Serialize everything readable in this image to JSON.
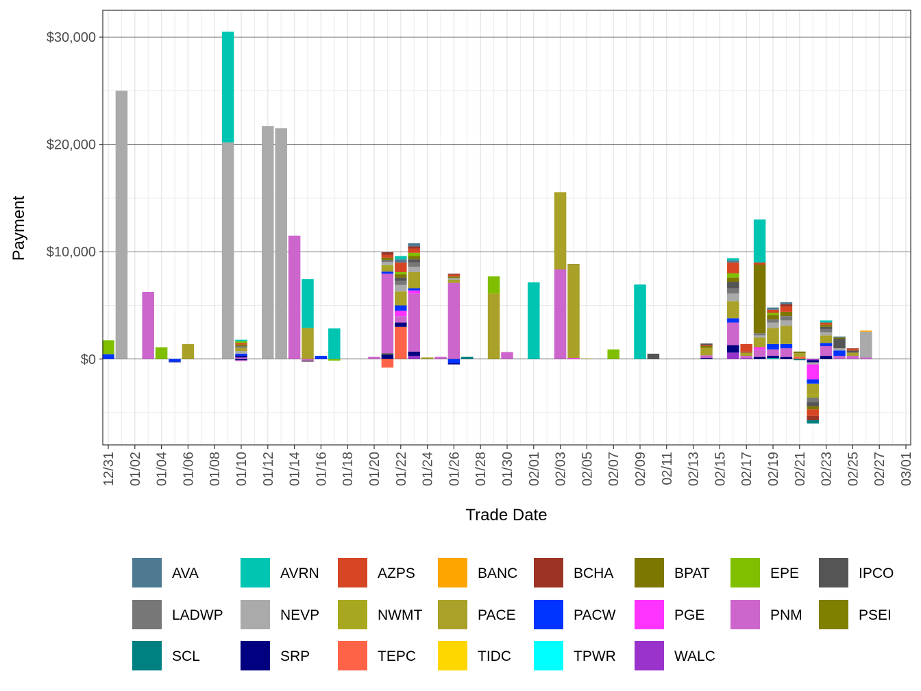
{
  "chart_data": {
    "type": "bar",
    "stacked": true,
    "xlabel": "Trade Date",
    "ylabel": "Payment",
    "ylim": [
      -8000,
      32500
    ],
    "y_ticks": [
      0,
      10000,
      20000,
      30000
    ],
    "y_tick_labels": [
      "$0",
      "$10,000",
      "$20,000",
      "$30,000"
    ],
    "x_tick_labels": [
      "12/31",
      "01/02",
      "01/04",
      "01/06",
      "01/08",
      "01/10",
      "01/12",
      "01/14",
      "01/16",
      "01/18",
      "01/20",
      "01/22",
      "01/24",
      "01/26",
      "01/28",
      "01/30",
      "02/01",
      "02/03",
      "02/05",
      "02/07",
      "02/09",
      "02/11",
      "02/13",
      "02/15",
      "02/17",
      "02/19",
      "02/21",
      "02/23",
      "02/25",
      "02/27",
      "03/01"
    ],
    "grid": true,
    "legend_position": "bottom",
    "series": [
      {
        "name": "AVA",
        "color": "#4e7a91"
      },
      {
        "name": "AVRN",
        "color": "#00c5b2"
      },
      {
        "name": "AZPS",
        "color": "#d64524"
      },
      {
        "name": "BANC",
        "color": "#ffa500"
      },
      {
        "name": "BCHA",
        "color": "#9c3426"
      },
      {
        "name": "BPAT",
        "color": "#7d7700"
      },
      {
        "name": "EPE",
        "color": "#7fbf00"
      },
      {
        "name": "IPCO",
        "color": "#555555"
      },
      {
        "name": "LADWP",
        "color": "#777777"
      },
      {
        "name": "NEVP",
        "color": "#aaaaaa"
      },
      {
        "name": "NWMT",
        "color": "#a8a820"
      },
      {
        "name": "PACE",
        "color": "#a9a128"
      },
      {
        "name": "PACW",
        "color": "#0033ff"
      },
      {
        "name": "PGE",
        "color": "#ff33ff"
      },
      {
        "name": "PNM",
        "color": "#cc66cc"
      },
      {
        "name": "PSEI",
        "color": "#7f7f00"
      },
      {
        "name": "SCL",
        "color": "#008080"
      },
      {
        "name": "SRP",
        "color": "#000080"
      },
      {
        "name": "TEPC",
        "color": "#ff6347"
      },
      {
        "name": "TIDC",
        "color": "#ffd700"
      },
      {
        "name": "TPWR",
        "color": "#00ffff"
      },
      {
        "name": "WALC",
        "color": "#9933cc"
      }
    ],
    "bars": [
      {
        "day": 0,
        "date": "12/31",
        "segments": [
          {
            "s": "PACW",
            "v": 450
          },
          {
            "s": "EPE",
            "v": 1300
          }
        ]
      },
      {
        "day": 1,
        "date": "01/01",
        "segments": [
          {
            "s": "NEVP",
            "v": 25000
          }
        ]
      },
      {
        "day": 3,
        "date": "01/03",
        "segments": [
          {
            "s": "PNM",
            "v": 6250
          }
        ]
      },
      {
        "day": 4,
        "date": "01/04",
        "segments": [
          {
            "s": "EPE",
            "v": 1100
          }
        ]
      },
      {
        "day": 5,
        "date": "01/05",
        "segments": [
          {
            "s": "PACW",
            "v": -250
          },
          {
            "s": "SRP",
            "v": -50
          }
        ]
      },
      {
        "day": 6,
        "date": "01/06",
        "segments": [
          {
            "s": "PACE",
            "v": 1400
          }
        ]
      },
      {
        "day": 9,
        "date": "01/09",
        "segments": [
          {
            "s": "NEVP",
            "v": 20200
          },
          {
            "s": "AVRN",
            "v": 10300
          }
        ]
      },
      {
        "day": 10,
        "date": "01/10",
        "segments": [
          {
            "s": "PNM",
            "v": 150
          },
          {
            "s": "SRP",
            "v": 150
          },
          {
            "s": "PACW",
            "v": 200
          },
          {
            "s": "NEVP",
            "v": 250
          },
          {
            "s": "PACE",
            "v": 300
          },
          {
            "s": "LADWP",
            "v": 150
          },
          {
            "s": "BPAT",
            "v": 150
          },
          {
            "s": "AZPS",
            "v": 150
          },
          {
            "s": "EPE",
            "v": 150
          },
          {
            "s": "AVRN",
            "v": 150
          },
          {
            "s": "SRP",
            "v": -100
          },
          {
            "s": "PNM",
            "v": -100
          }
        ]
      },
      {
        "day": 12,
        "date": "01/12",
        "segments": [
          {
            "s": "NEVP",
            "v": 21700
          }
        ]
      },
      {
        "day": 13,
        "date": "01/13",
        "segments": [
          {
            "s": "NEVP",
            "v": 21500
          }
        ]
      },
      {
        "day": 14,
        "date": "01/14",
        "segments": [
          {
            "s": "PNM",
            "v": 11500
          }
        ]
      },
      {
        "day": 15,
        "date": "01/15",
        "segments": [
          {
            "s": "PACE",
            "v": 2900
          },
          {
            "s": "AVRN",
            "v": 4550
          },
          {
            "s": "PNM",
            "v": -150
          },
          {
            "s": "IPCO",
            "v": -100
          }
        ]
      },
      {
        "day": 16,
        "date": "01/16",
        "segments": [
          {
            "s": "PACW",
            "v": 300
          }
        ]
      },
      {
        "day": 17,
        "date": "01/17",
        "segments": [
          {
            "s": "AVRN",
            "v": 2850
          },
          {
            "s": "EPE",
            "v": -150
          }
        ]
      },
      {
        "day": 20,
        "date": "01/20",
        "segments": [
          {
            "s": "PNM",
            "v": 200
          }
        ]
      },
      {
        "day": 21,
        "date": "01/21",
        "segments": [
          {
            "s": "SRP",
            "v": 400
          },
          {
            "s": "IPCO",
            "v": 150
          },
          {
            "s": "PNM",
            "v": 7400
          },
          {
            "s": "PACW",
            "v": 200
          },
          {
            "s": "PACE",
            "v": 400
          },
          {
            "s": "NWMT",
            "v": 200
          },
          {
            "s": "NEVP",
            "v": 300
          },
          {
            "s": "LADWP",
            "v": 200
          },
          {
            "s": "BPAT",
            "v": 200
          },
          {
            "s": "AZPS",
            "v": 250
          },
          {
            "s": "BCHA",
            "v": 250
          },
          {
            "s": "TEPC",
            "v": -800
          }
        ]
      },
      {
        "day": 22,
        "date": "01/22",
        "segments": [
          {
            "s": "TEPC",
            "v": 3000
          },
          {
            "s": "SRP",
            "v": 400
          },
          {
            "s": "PNM",
            "v": 600
          },
          {
            "s": "PGE",
            "v": 500
          },
          {
            "s": "PACW",
            "v": 500
          },
          {
            "s": "PACE",
            "v": 1300
          },
          {
            "s": "NEVP",
            "v": 600
          },
          {
            "s": "LADWP",
            "v": 400
          },
          {
            "s": "IPCO",
            "v": 300
          },
          {
            "s": "BPAT",
            "v": 300
          },
          {
            "s": "EPE",
            "v": 200
          },
          {
            "s": "AZPS",
            "v": 900
          },
          {
            "s": "AVA",
            "v": 300
          },
          {
            "s": "AVRN",
            "v": 300
          }
        ]
      },
      {
        "day": 23,
        "date": "01/23",
        "segments": [
          {
            "s": "WALC",
            "v": 300
          },
          {
            "s": "SRP",
            "v": 400
          },
          {
            "s": "PNM",
            "v": 5400
          },
          {
            "s": "PGE",
            "v": 300
          },
          {
            "s": "PACW",
            "v": 200
          },
          {
            "s": "PACE",
            "v": 1500
          },
          {
            "s": "NEVP",
            "v": 500
          },
          {
            "s": "LADWP",
            "v": 400
          },
          {
            "s": "IPCO",
            "v": 300
          },
          {
            "s": "BPAT",
            "v": 300
          },
          {
            "s": "EPE",
            "v": 300
          },
          {
            "s": "AZPS",
            "v": 400
          },
          {
            "s": "BCHA",
            "v": 200
          },
          {
            "s": "AVA",
            "v": 300
          }
        ]
      },
      {
        "day": 24,
        "date": "01/24",
        "segments": [
          {
            "s": "PACE",
            "v": 150
          }
        ]
      },
      {
        "day": 25,
        "date": "01/25",
        "segments": [
          {
            "s": "PNM",
            "v": 200
          }
        ]
      },
      {
        "day": 26,
        "date": "01/26",
        "segments": [
          {
            "s": "PNM",
            "v": 7100
          },
          {
            "s": "PACE",
            "v": 300
          },
          {
            "s": "NEVP",
            "v": 150
          },
          {
            "s": "BPAT",
            "v": 150
          },
          {
            "s": "AZPS",
            "v": 150
          },
          {
            "s": "BCHA",
            "v": 100
          },
          {
            "s": "PACW",
            "v": -400
          },
          {
            "s": "SRP",
            "v": -100
          }
        ]
      },
      {
        "day": 27,
        "date": "01/27",
        "segments": [
          {
            "s": "SCL",
            "v": 200
          }
        ]
      },
      {
        "day": 29,
        "date": "01/29",
        "segments": [
          {
            "s": "PACE",
            "v": 6100
          },
          {
            "s": "EPE",
            "v": 1600
          }
        ]
      },
      {
        "day": 30,
        "date": "01/30",
        "segments": [
          {
            "s": "PNM",
            "v": 650
          }
        ]
      },
      {
        "day": 32,
        "date": "02/01",
        "segments": [
          {
            "s": "AVRN",
            "v": 7150
          }
        ]
      },
      {
        "day": 34,
        "date": "02/03",
        "segments": [
          {
            "s": "PNM",
            "v": 8350
          },
          {
            "s": "PACE",
            "v": 7200
          }
        ]
      },
      {
        "day": 35,
        "date": "02/04",
        "segments": [
          {
            "s": "PGE",
            "v": 100
          },
          {
            "s": "PACE",
            "v": 8700
          },
          {
            "s": "BPAT",
            "v": 50
          }
        ]
      },
      {
        "day": 36,
        "date": "02/05",
        "segments": [
          {
            "s": "PACE",
            "v": 50
          }
        ]
      },
      {
        "day": 38,
        "date": "02/07",
        "segments": [
          {
            "s": "EPE",
            "v": 900
          }
        ]
      },
      {
        "day": 40,
        "date": "02/09",
        "segments": [
          {
            "s": "AVRN",
            "v": 6950
          }
        ]
      },
      {
        "day": 41,
        "date": "02/10",
        "segments": [
          {
            "s": "IPCO",
            "v": 500
          }
        ]
      },
      {
        "day": 45,
        "date": "02/14",
        "segments": [
          {
            "s": "SRP",
            "v": 100
          },
          {
            "s": "PNM",
            "v": 250
          },
          {
            "s": "PACE",
            "v": 700
          },
          {
            "s": "BPAT",
            "v": 150
          },
          {
            "s": "AZPS",
            "v": 100
          },
          {
            "s": "IPCO",
            "v": 150
          }
        ]
      },
      {
        "day": 47,
        "date": "02/16",
        "segments": [
          {
            "s": "WALC",
            "v": 600
          },
          {
            "s": "SRP",
            "v": 700
          },
          {
            "s": "PNM",
            "v": 2100
          },
          {
            "s": "PACW",
            "v": 400
          },
          {
            "s": "PACE",
            "v": 1600
          },
          {
            "s": "NEVP",
            "v": 700
          },
          {
            "s": "LADWP",
            "v": 500
          },
          {
            "s": "IPCO",
            "v": 600
          },
          {
            "s": "BPAT",
            "v": 400
          },
          {
            "s": "EPE",
            "v": 400
          },
          {
            "s": "AZPS",
            "v": 1000
          },
          {
            "s": "AVA",
            "v": 200
          },
          {
            "s": "AVRN",
            "v": 200
          }
        ]
      },
      {
        "day": 48,
        "date": "02/17",
        "segments": [
          {
            "s": "WALC",
            "v": 100
          },
          {
            "s": "PNM",
            "v": 200
          },
          {
            "s": "PACE",
            "v": 300
          },
          {
            "s": "BCHA",
            "v": 100
          },
          {
            "s": "AZPS",
            "v": 700
          }
        ]
      },
      {
        "day": 49,
        "date": "02/18",
        "segments": [
          {
            "s": "SRP",
            "v": 200
          },
          {
            "s": "PNM",
            "v": 700
          },
          {
            "s": "PGE",
            "v": 200
          },
          {
            "s": "PACE",
            "v": 900
          },
          {
            "s": "NEVP",
            "v": 200
          },
          {
            "s": "LADWP",
            "v": 200
          },
          {
            "s": "BPAT",
            "v": 6400
          },
          {
            "s": "AZPS",
            "v": 200
          },
          {
            "s": "AVRN",
            "v": 4000
          }
        ]
      },
      {
        "day": 50,
        "date": "02/19",
        "segments": [
          {
            "s": "AVRN",
            "v": 100
          },
          {
            "s": "SRP",
            "v": 200
          },
          {
            "s": "PNM",
            "v": 600
          },
          {
            "s": "PACW",
            "v": 500
          },
          {
            "s": "PACE",
            "v": 1500
          },
          {
            "s": "NEVP",
            "v": 500
          },
          {
            "s": "LADWP",
            "v": 300
          },
          {
            "s": "BPAT",
            "v": 400
          },
          {
            "s": "EPE",
            "v": 200
          },
          {
            "s": "AZPS",
            "v": 300
          },
          {
            "s": "AVA",
            "v": 200
          }
        ]
      },
      {
        "day": 51,
        "date": "02/20",
        "segments": [
          {
            "s": "SRP",
            "v": 200
          },
          {
            "s": "PNM",
            "v": 800
          },
          {
            "s": "PACW",
            "v": 400
          },
          {
            "s": "PACE",
            "v": 1700
          },
          {
            "s": "NEVP",
            "v": 500
          },
          {
            "s": "LADWP",
            "v": 400
          },
          {
            "s": "BPAT",
            "v": 400
          },
          {
            "s": "AZPS",
            "v": 500
          },
          {
            "s": "BCHA",
            "v": 200
          },
          {
            "s": "AVA",
            "v": 200
          }
        ]
      },
      {
        "day": 52,
        "date": "02/21",
        "segments": [
          {
            "s": "TEPC",
            "v": 200
          },
          {
            "s": "PACE",
            "v": 350
          },
          {
            "s": "BPAT",
            "v": 150
          },
          {
            "s": "SCL",
            "v": -100
          }
        ]
      },
      {
        "day": 53,
        "date": "02/22",
        "segments": [
          {
            "s": "WALC",
            "v": -100
          },
          {
            "s": "SRP",
            "v": -200
          },
          {
            "s": "NEVP",
            "v": -200
          },
          {
            "s": "PGE",
            "v": -1400
          },
          {
            "s": "PACW",
            "v": -400
          },
          {
            "s": "PACE",
            "v": -1000
          },
          {
            "s": "NWMT",
            "v": -300
          },
          {
            "s": "LADWP",
            "v": -400
          },
          {
            "s": "IPCO",
            "v": -400
          },
          {
            "s": "BPAT",
            "v": -300
          },
          {
            "s": "AZPS",
            "v": -600
          },
          {
            "s": "BCHA",
            "v": -400
          },
          {
            "s": "SCL",
            "v": -300
          }
        ]
      },
      {
        "day": 54,
        "date": "02/23",
        "segments": [
          {
            "s": "SRP",
            "v": 300
          },
          {
            "s": "PNM",
            "v": 900
          },
          {
            "s": "PACW",
            "v": 300
          },
          {
            "s": "PACE",
            "v": 700
          },
          {
            "s": "NEVP",
            "v": 300
          },
          {
            "s": "LADWP",
            "v": 300
          },
          {
            "s": "IPCO",
            "v": 200
          },
          {
            "s": "BPAT",
            "v": 200
          },
          {
            "s": "AZPS",
            "v": 200
          },
          {
            "s": "AVRN",
            "v": 200
          }
        ]
      },
      {
        "day": 55,
        "date": "02/24",
        "segments": [
          {
            "s": "PNM",
            "v": 300
          },
          {
            "s": "PACW",
            "v": 500
          },
          {
            "s": "NEVP",
            "v": 200
          },
          {
            "s": "IPCO",
            "v": 900
          },
          {
            "s": "BPAT",
            "v": 100
          },
          {
            "s": "AVA",
            "v": 100
          }
        ]
      },
      {
        "day": 56,
        "date": "02/25",
        "segments": [
          {
            "s": "PNM",
            "v": 300
          },
          {
            "s": "PACE",
            "v": 300
          },
          {
            "s": "IPCO",
            "v": 200
          },
          {
            "s": "AZPS",
            "v": 150
          },
          {
            "s": "BCHA",
            "v": 50
          }
        ]
      },
      {
        "day": 57,
        "date": "02/26",
        "segments": [
          {
            "s": "PNM",
            "v": 150
          },
          {
            "s": "NEVP",
            "v": 2400
          },
          {
            "s": "BANC",
            "v": 100
          }
        ]
      }
    ]
  }
}
